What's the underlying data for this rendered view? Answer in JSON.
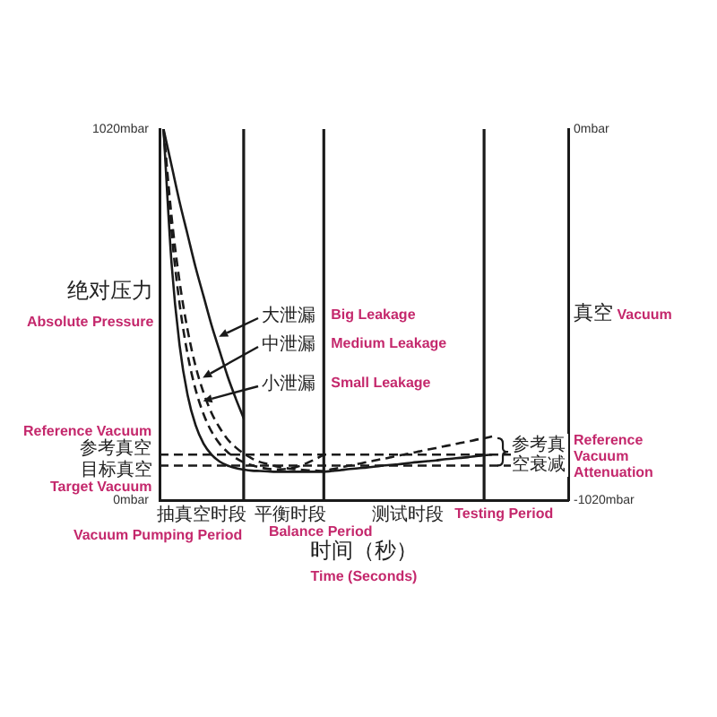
{
  "chart_data": {
    "type": "line",
    "xlabel": "时间（秒）\nTime (Seconds)",
    "ylabel": "绝对压力\nAbsolute Pressure",
    "y2label": "真空 Vacuum",
    "categories": [
      null,
      null,
      null,
      null,
      null,
      null,
      null,
      null,
      null,
      null,
      null,
      null,
      null,
      null,
      null,
      null,
      null,
      null,
      null,
      null,
      null,
      null,
      null,
      null,
      null,
      null,
      null,
      null,
      null,
      null,
      null,
      null,
      null,
      null,
      null,
      null,
      null,
      null,
      null,
      null,
      null,
      null,
      null,
      null,
      null,
      null,
      null,
      null,
      null,
      null,
      null
    ],
    "ylim": [
      0,
      1020
    ],
    "yticks": [
      {
        "value": 0,
        "label": "0mbar"
      },
      {
        "value": 1020,
        "label": "1020mbar"
      }
    ],
    "y2lim": [
      -1020,
      0
    ],
    "y2ticks": [
      {
        "value": -1020,
        "label": "-1020mbar"
      },
      {
        "value": 0,
        "label": "0mbar"
      }
    ],
    "marker": "none",
    "grid": "x",
    "series": [
      {
        "color": "#1a1a1a",
        "line_style": "solid",
        "values": [
          1020,
          651,
          426,
          289,
          206,
          155,
          125,
          106,
          95,
          88,
          84,
          81,
          80,
          79,
          78,
          78,
          78,
          78,
          78,
          78,
          78,
          80,
          82,
          85,
          87,
          89,
          91,
          94,
          96,
          98,
          100,
          103,
          105,
          107,
          109,
          112,
          114,
          116,
          118,
          121,
          123,
          125,
          null,
          null,
          null,
          null,
          null,
          null,
          null,
          null,
          null
        ]
      },
      {
        "color": "#1a1a1a",
        "line_style": "dashed",
        "values": [
          1020,
          737,
          540,
          401,
          304,
          236,
          188,
          155,
          132,
          116,
          104,
          96,
          90,
          86,
          84,
          85,
          88,
          94,
          103,
          113,
          125,
          null,
          null,
          null,
          null,
          null,
          null,
          null,
          null,
          null,
          null,
          null,
          null,
          null,
          null,
          null,
          null,
          null,
          null,
          null,
          null,
          null,
          null,
          null,
          null,
          null,
          null,
          null,
          null,
          null,
          null
        ]
      },
      {
        "color": "#1a1a1a",
        "line_style": "dashed",
        "values": [
          1020,
          780,
          601,
          468,
          368,
          295,
          239,
          199,
          167,
          145,
          128,
          115,
          105,
          99,
          93,
          89,
          86,
          84,
          82,
          81,
          80,
          85,
          89,
          94,
          98,
          103,
          107,
          112,
          116,
          121,
          125,
          130,
          134,
          139,
          143,
          148,
          152,
          157,
          161,
          166,
          170,
          175,
          null,
          null,
          null,
          null,
          null,
          null,
          null,
          null,
          null
        ]
      },
      {
        "color": "#1a1a1a",
        "line_style": "solid",
        "values": [
          1020,
          920,
          820,
          730,
          640,
          560,
          480,
          410,
          340,
          280,
          225,
          null,
          null,
          null,
          null,
          null,
          null,
          null,
          null,
          null,
          null,
          null,
          null,
          null,
          null,
          null,
          null,
          null,
          null,
          null,
          null,
          null,
          null,
          null,
          null,
          null,
          null,
          null,
          null,
          null,
          null,
          null,
          null,
          null,
          null,
          null,
          null,
          null,
          null,
          null,
          null
        ]
      }
    ],
    "ref_lines": [
      {
        "axis": "y",
        "value": 125,
        "label": "Reference Vacuum\n参考真空",
        "line_style": "dashed",
        "color": "#1a1a1a"
      },
      {
        "axis": "y",
        "value": 95,
        "label": "目标真空\nTarget Vacuum",
        "line_style": "dashed",
        "color": "#1a1a1a"
      }
    ],
    "annotations": [
      "大泄漏",
      "Big Leakage",
      "中泄漏",
      "Medium Leakage",
      "小泄漏",
      "Small Leakage",
      "参考真空衰减",
      "Reference Vacuum Attenuation",
      "抽真空时段",
      "Vacuum Pumping Period",
      "平衡时段",
      "Balance Period",
      "测试时段",
      "Testing Period"
    ]
  }
}
